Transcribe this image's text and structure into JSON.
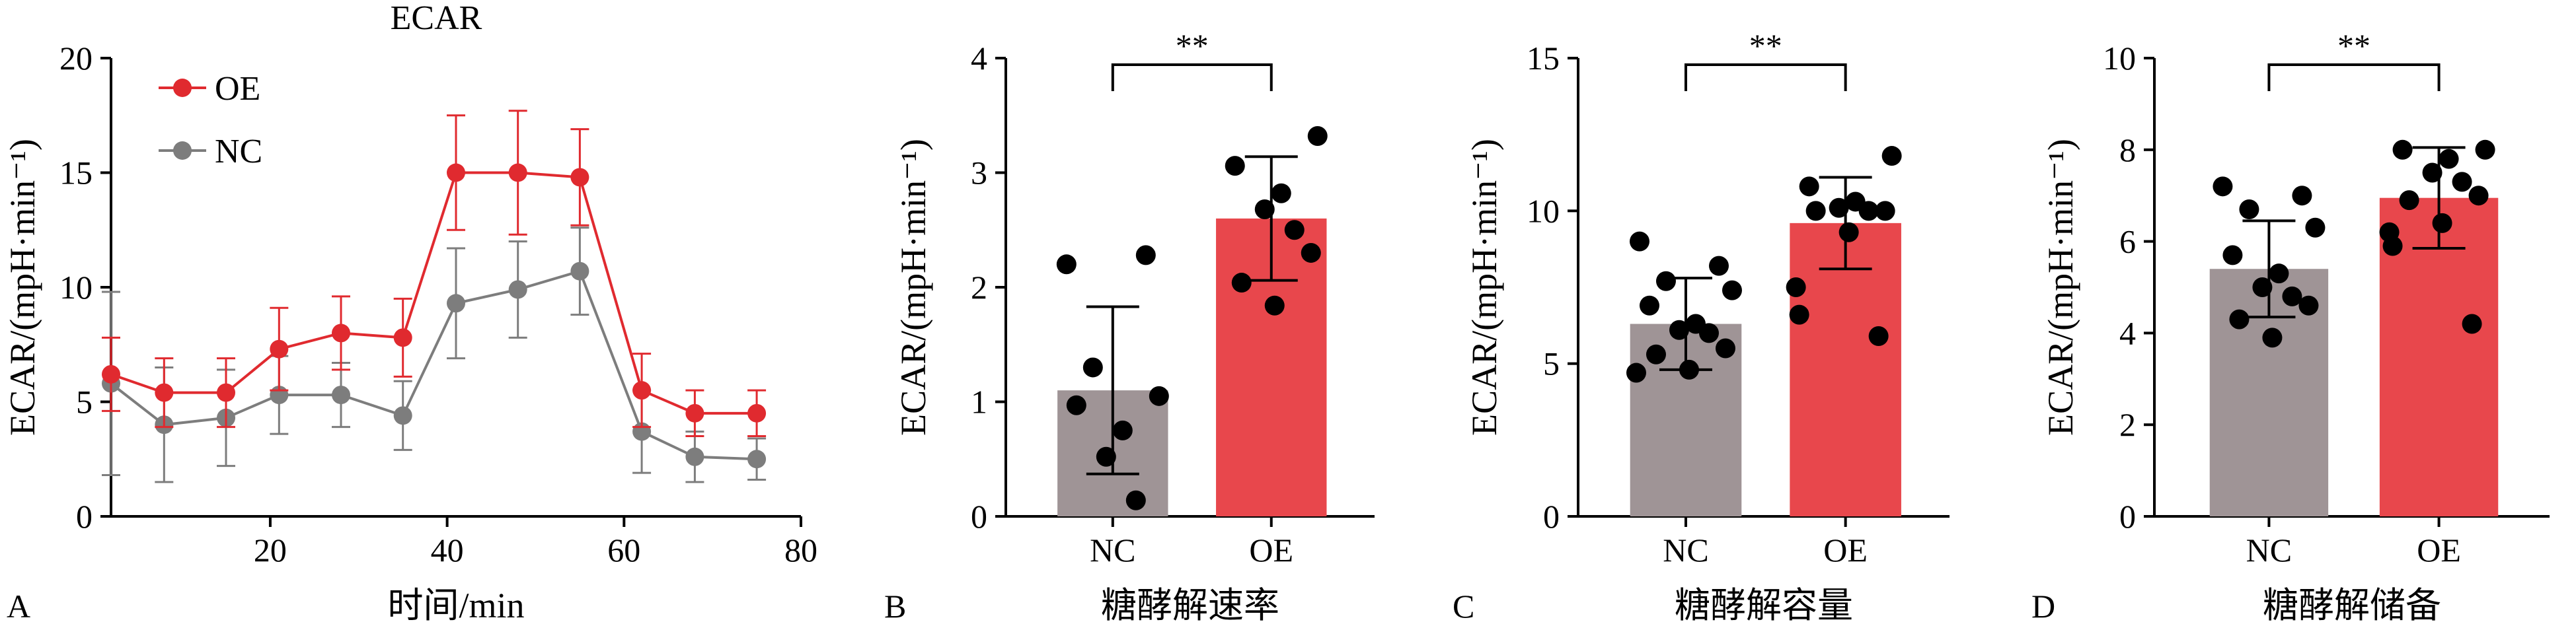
{
  "colors": {
    "oe": "#e8474c",
    "oe_line": "#e02a2f",
    "nc": "#9f9496",
    "nc_line": "#7d7d7d",
    "dot": "#000000",
    "axis": "#000000"
  },
  "chart_data": [
    {
      "type": "line",
      "panel_label": "A",
      "title": "ECAR",
      "xlabel": "时间/min",
      "ylabel": "ECAR/(mpH·min⁻¹)",
      "xlim": [
        2,
        80
      ],
      "ylim": [
        0,
        20
      ],
      "xticks": [
        20,
        40,
        60,
        80
      ],
      "xtick_labels": [
        "20",
        "40",
        "60",
        "80"
      ],
      "yticks": [
        0,
        5,
        10,
        15,
        20
      ],
      "ytick_labels": [
        "0",
        "5",
        "10",
        "15",
        "20"
      ],
      "legend": "top-left",
      "x": [
        2,
        8,
        15,
        21,
        28,
        35,
        41,
        48,
        55,
        62,
        68,
        75
      ],
      "series": [
        {
          "name": "OE",
          "color": "#e02a2f",
          "values": [
            6.2,
            5.4,
            5.4,
            7.3,
            8.0,
            7.8,
            15.0,
            15.0,
            14.8,
            5.5,
            4.5,
            4.5
          ],
          "errors": [
            1.6,
            1.5,
            1.5,
            1.8,
            1.6,
            1.7,
            2.5,
            2.7,
            2.1,
            1.6,
            1.0,
            1.0
          ]
        },
        {
          "name": "NC",
          "color": "#7d7d7d",
          "values": [
            5.8,
            4.0,
            4.3,
            5.3,
            5.3,
            4.4,
            9.3,
            9.9,
            10.7,
            3.7,
            2.6,
            2.5
          ],
          "errors": [
            4.0,
            2.5,
            2.1,
            1.7,
            1.4,
            1.5,
            2.4,
            2.1,
            1.9,
            1.8,
            1.1,
            0.9
          ]
        }
      ]
    },
    {
      "type": "bar",
      "panel_label": "B",
      "title": "",
      "xlabel": "糖酵解速率",
      "ylabel": "ECAR/(mpH·min⁻¹)",
      "ylim": [
        0,
        4
      ],
      "yticks": [
        0,
        1,
        2,
        3,
        4
      ],
      "ytick_labels": [
        "0",
        "1",
        "2",
        "3",
        "4"
      ],
      "categories": [
        "NC",
        "OE"
      ],
      "values": [
        1.1,
        2.6
      ],
      "errors": [
        0.73,
        0.54
      ],
      "significance": "**",
      "points": [
        [
          2.2,
          2.28,
          1.3,
          1.05,
          0.97,
          0.75,
          0.52,
          0.14
        ],
        [
          3.32,
          3.06,
          2.82,
          2.68,
          2.5,
          2.3,
          2.04,
          1.84
        ]
      ]
    },
    {
      "type": "bar",
      "panel_label": "C",
      "title": "",
      "xlabel": "糖酵解容量",
      "ylabel": "ECAR/(mpH·min⁻¹)",
      "ylim": [
        0,
        15
      ],
      "yticks": [
        0,
        5,
        10,
        15
      ],
      "ytick_labels": [
        "0",
        "5",
        "10",
        "15"
      ],
      "categories": [
        "NC",
        "OE"
      ],
      "values": [
        6.3,
        9.6
      ],
      "errors": [
        1.5,
        1.5
      ],
      "significance": "**",
      "points": [
        [
          9.0,
          8.2,
          7.7,
          7.4,
          6.9,
          6.3,
          6.1,
          6.0,
          5.5,
          5.3,
          4.8,
          4.7
        ],
        [
          11.8,
          10.8,
          10.3,
          10.1,
          10.0,
          10.0,
          10.0,
          9.3,
          7.5,
          6.6,
          5.9
        ]
      ]
    },
    {
      "type": "bar",
      "panel_label": "D",
      "title": "",
      "xlabel": "糖酵解储备",
      "ylabel": "ECAR/(mpH·min⁻¹)",
      "ylim": [
        0,
        10
      ],
      "yticks": [
        0,
        2,
        4,
        6,
        8,
        10
      ],
      "ytick_labels": [
        "0",
        "2",
        "4",
        "6",
        "8",
        "10"
      ],
      "categories": [
        "NC",
        "OE"
      ],
      "values": [
        5.4,
        6.95
      ],
      "errors": [
        1.05,
        1.1
      ],
      "significance": "**",
      "points": [
        [
          7.2,
          7.0,
          6.7,
          6.3,
          5.7,
          5.3,
          5.0,
          4.8,
          4.6,
          4.3,
          3.9
        ],
        [
          8.0,
          8.0,
          7.8,
          7.5,
          7.3,
          7.0,
          6.9,
          6.4,
          6.2,
          5.9,
          4.2
        ]
      ]
    }
  ]
}
